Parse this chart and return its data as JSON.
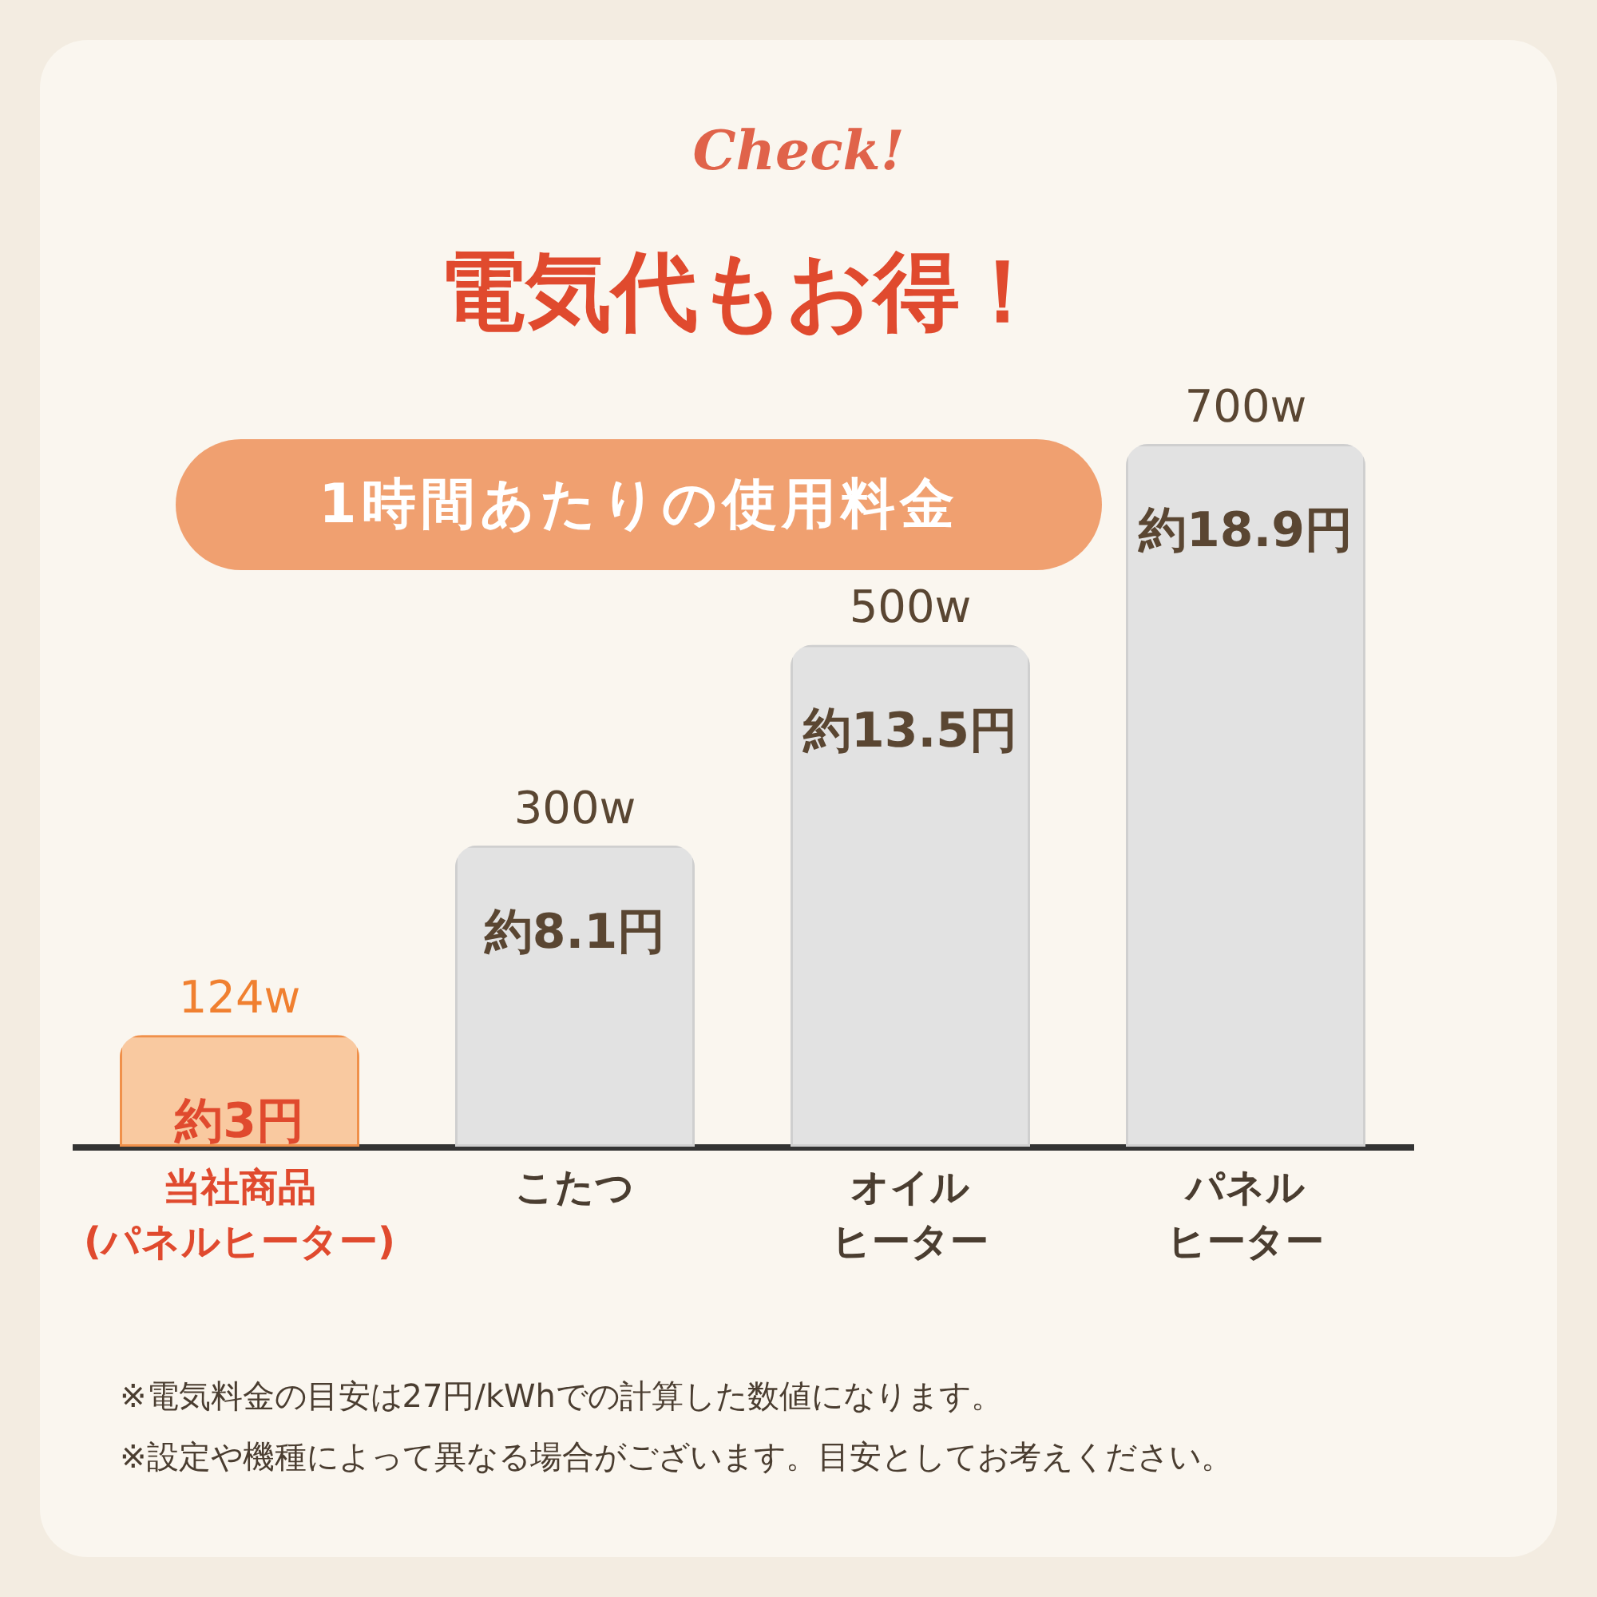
{
  "chart_data": {
    "type": "bar",
    "title": "電気代もお得！",
    "subtitle": "1時間あたりの使用料金",
    "categories": [
      "当社商品(パネルヒーター)",
      "こたつ",
      "オイルヒーター",
      "パネルヒーター"
    ],
    "tick_labels": "x",
    "values": [
      3,
      8.1,
      13.5,
      18.9
    ],
    "value_labels": [
      "約3円",
      "約8.1円",
      "約13.5円",
      "約18.9円"
    ],
    "colors": [
      "#f9c9a0",
      "#e2e2e2",
      "#e2e2e2",
      "#e2e2e2"
    ],
    "annotations": [
      "Check!",
      {
        "text": "124w",
        "x": "当社商品(パネルヒーター)",
        "y": 3
      },
      {
        "text": "300w",
        "x": "こたつ",
        "y": 8.1
      },
      {
        "text": "500w",
        "x": "オイルヒーター",
        "y": 13.5
      },
      {
        "text": "700w",
        "x": "パネルヒーター",
        "y": 18.9
      },
      "※電気料金の目安は27円/kWhでの計算した数値になります。",
      "※設定や機種によって異なる場合がございます。目安としてお考えください。"
    ]
  }
}
